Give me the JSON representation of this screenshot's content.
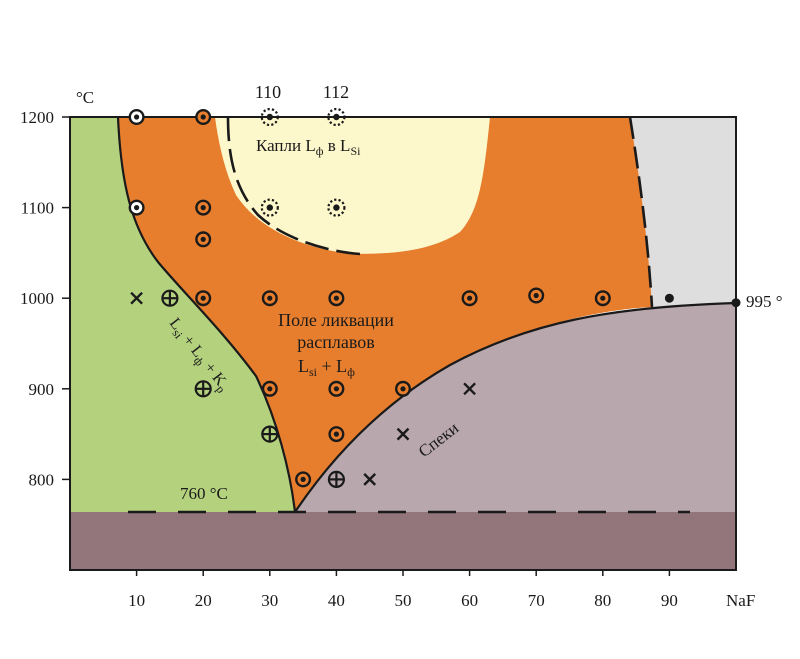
{
  "chart_data": {
    "type": "phase-diagram",
    "xlim": [
      0,
      100
    ],
    "ylim": [
      700,
      1200
    ],
    "x_ticks": [
      "10",
      "20",
      "30",
      "40",
      "50",
      "60",
      "70",
      "80",
      "90"
    ],
    "x_end_label": "NaF",
    "y_ticks": [
      "1200",
      "1100",
      "1000",
      "900",
      "800"
    ],
    "y_unit": "°C",
    "labels": {
      "drops": "Капли L",
      "drops_sub1": "ф",
      "drops_mid": " в L",
      "drops_sub2": "Si",
      "field_line1": "Поле ликвации",
      "field_line2": "расплавов",
      "field_l": "L",
      "field_sub1": "si",
      "field_plus": " + L",
      "field_sub2": "ф",
      "diag_L1": "L",
      "diag_sub1": "si",
      "diag_plus1": " + L",
      "diag_sub2": "ф",
      "diag_plus2": " + K",
      "diag_sub3": "p",
      "speki": "Спеки",
      "eutectic": "760 °C",
      "melt_point": "995 °",
      "top_110": "110",
      "top_112": "112"
    },
    "regions": {
      "green": "#b4d27e",
      "orange": "#e67e2e",
      "cream": "#fdf8cb",
      "grey": "#dedede",
      "mauve": "#b8a7ad",
      "base": "#93767c"
    },
    "points": {
      "ring": [
        [
          10,
          1200
        ],
        [
          20,
          1200
        ],
        [
          10,
          1100
        ],
        [
          20,
          1100
        ],
        [
          20,
          1065
        ],
        [
          20,
          1000
        ],
        [
          30,
          1000
        ],
        [
          40,
          1000
        ],
        [
          60,
          1000
        ],
        [
          70,
          1003
        ],
        [
          80,
          1000
        ],
        [
          30,
          900
        ],
        [
          40,
          900
        ],
        [
          50,
          900
        ],
        [
          40,
          850
        ],
        [
          35,
          800
        ]
      ],
      "ring_hollow": [
        [
          10,
          1200
        ],
        [
          10,
          1100
        ]
      ],
      "cross_circle": [
        [
          15,
          1000
        ],
        [
          20,
          900
        ],
        [
          30,
          850
        ],
        [
          40,
          800
        ]
      ],
      "x_mark": [
        [
          10,
          1000
        ],
        [
          60,
          900
        ],
        [
          50,
          850
        ],
        [
          45,
          800
        ]
      ],
      "star": [
        [
          30,
          1200
        ],
        [
          40,
          1200
        ],
        [
          30,
          1100
        ],
        [
          40,
          1100
        ]
      ],
      "dot": [
        [
          90,
          1000
        ],
        [
          100,
          995
        ]
      ]
    }
  }
}
